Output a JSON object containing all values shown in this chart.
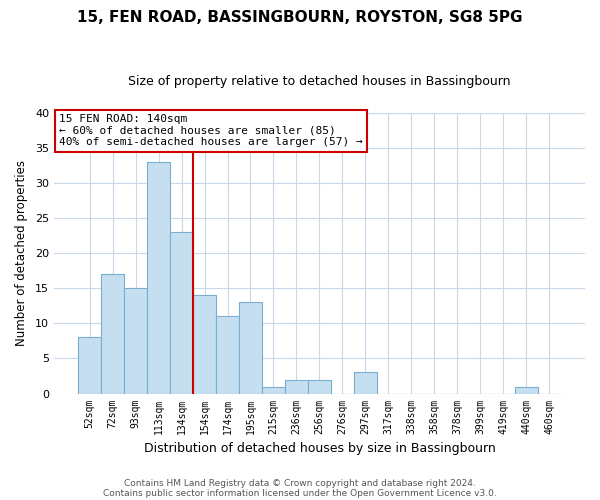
{
  "title": "15, FEN ROAD, BASSINGBOURN, ROYSTON, SG8 5PG",
  "subtitle": "Size of property relative to detached houses in Bassingbourn",
  "xlabel": "Distribution of detached houses by size in Bassingbourn",
  "ylabel": "Number of detached properties",
  "footnote1": "Contains HM Land Registry data © Crown copyright and database right 2024.",
  "footnote2": "Contains public sector information licensed under the Open Government Licence v3.0.",
  "bar_labels": [
    "52sqm",
    "72sqm",
    "93sqm",
    "113sqm",
    "134sqm",
    "154sqm",
    "174sqm",
    "195sqm",
    "215sqm",
    "236sqm",
    "256sqm",
    "276sqm",
    "297sqm",
    "317sqm",
    "338sqm",
    "358sqm",
    "378sqm",
    "399sqm",
    "419sqm",
    "440sqm",
    "460sqm"
  ],
  "bar_values": [
    8,
    17,
    15,
    33,
    23,
    14,
    11,
    13,
    1,
    2,
    2,
    0,
    3,
    0,
    0,
    0,
    0,
    0,
    0,
    1,
    0
  ],
  "bar_color": "#c5dff0",
  "bar_edge_color": "#7badd1",
  "vline_x": 4.5,
  "vline_color": "#cc0000",
  "annotation_title": "15 FEN ROAD: 140sqm",
  "annotation_line1": "← 60% of detached houses are smaller (85)",
  "annotation_line2": "40% of semi-detached houses are larger (57) →",
  "annotation_box_color": "#ffffff",
  "annotation_border_color": "#cc0000",
  "ylim": [
    0,
    40
  ],
  "yticks": [
    0,
    5,
    10,
    15,
    20,
    25,
    30,
    35,
    40
  ],
  "background_color": "#ffffff",
  "grid_color": "#c8d8e8",
  "title_fontsize": 11,
  "subtitle_fontsize": 9
}
